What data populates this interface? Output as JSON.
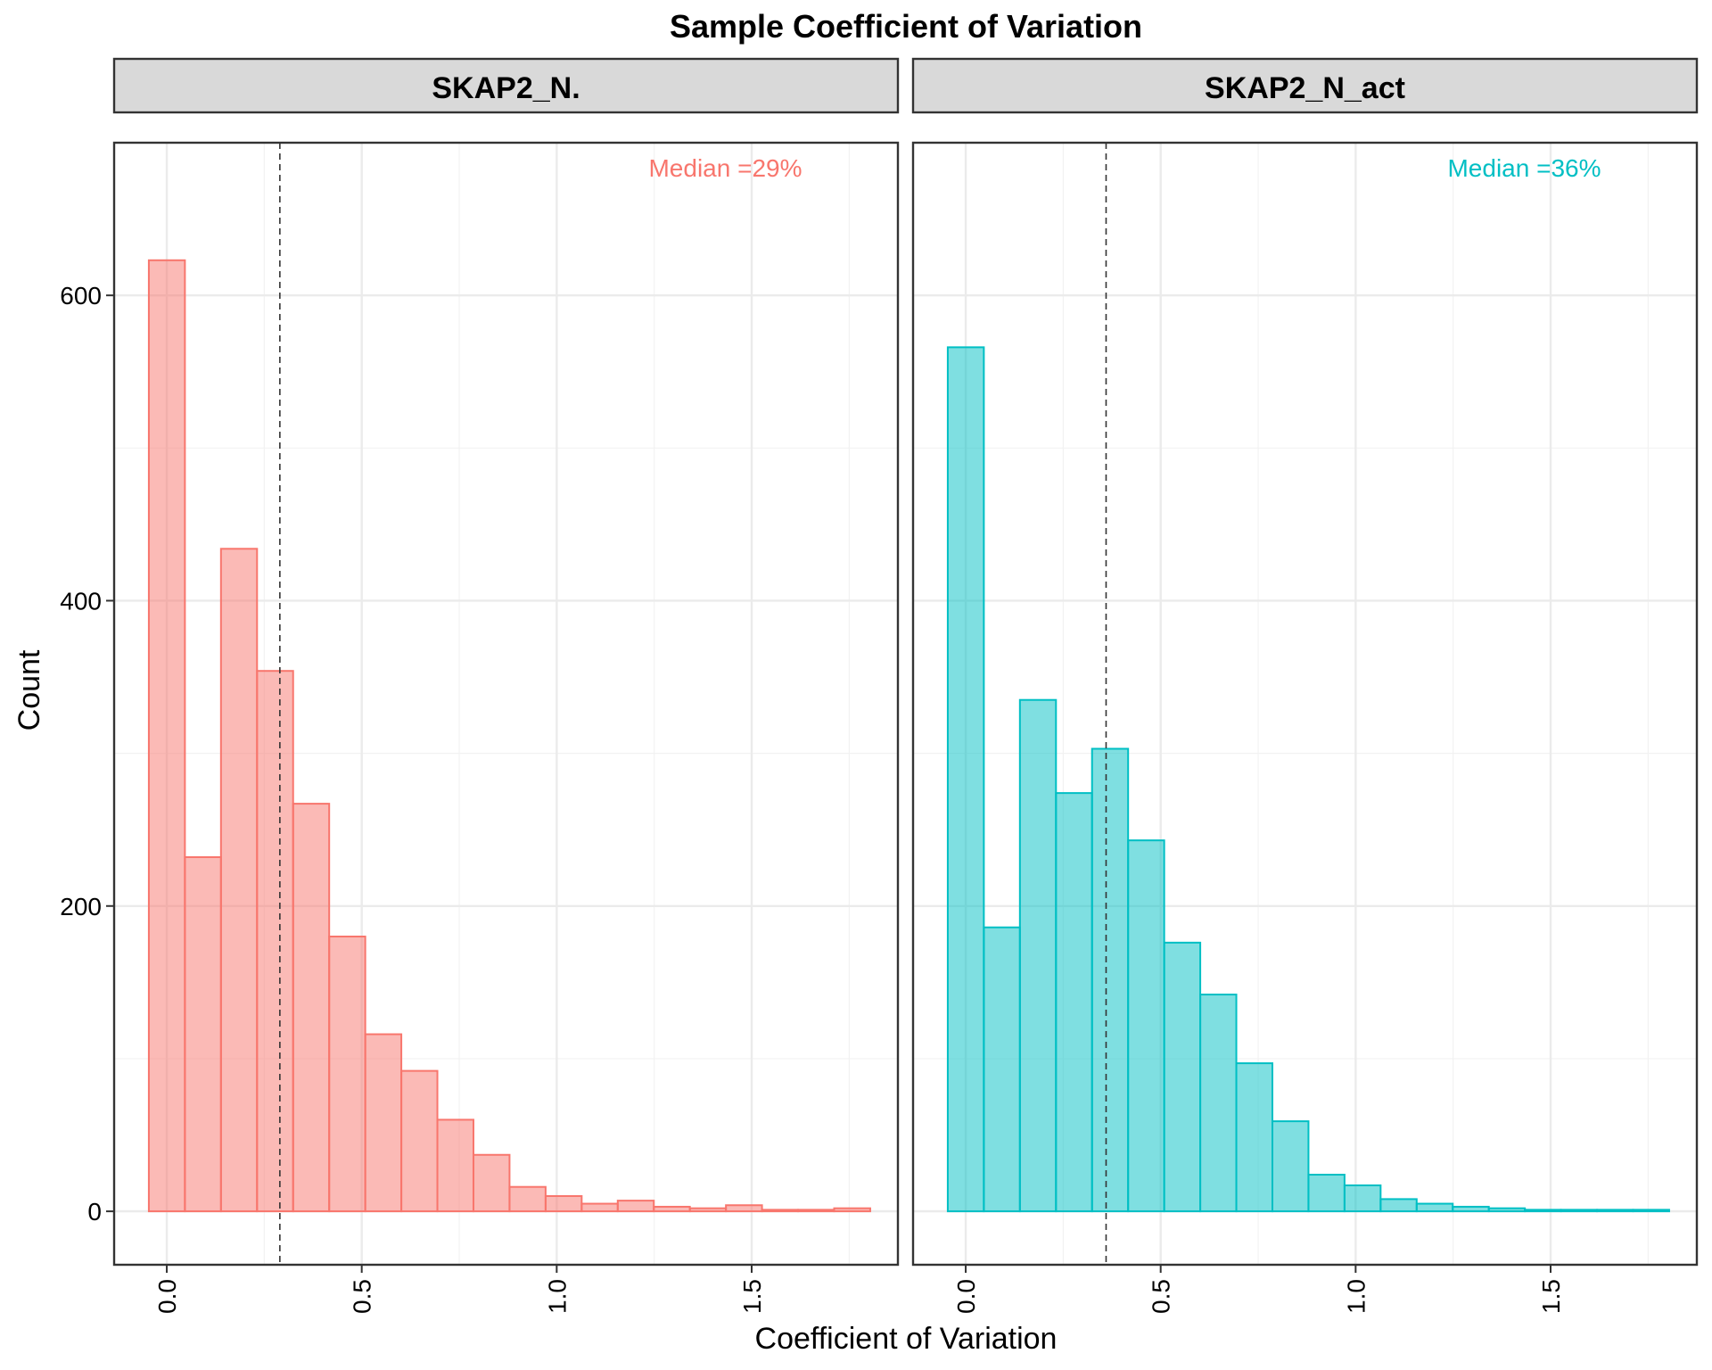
{
  "chart_data": {
    "type": "bar",
    "title": "Sample Coefficient of Variation",
    "xlabel": "Coefficient of Variation",
    "ylabel": "Count",
    "xlim": [
      -0.135,
      1.875
    ],
    "ylim": [
      -35,
      700
    ],
    "xticks": [
      0.0,
      0.5,
      1.0,
      1.5
    ],
    "xtick_labels": [
      "0.0",
      "0.5",
      "1.0",
      "1.5"
    ],
    "yticks": [
      0,
      200,
      400,
      600
    ],
    "ytick_labels": [
      "0",
      "200",
      "400",
      "600"
    ],
    "grid": true,
    "bin_width": 0.0925,
    "bin_start": -0.046,
    "reference_line": "dashed vertical line at the median",
    "panels": [
      {
        "name": "SKAP2_N.",
        "color": "#F8766D",
        "median": 0.29,
        "median_label": "Median =29%",
        "values": [
          623,
          232,
          434,
          354,
          267,
          180,
          116,
          92,
          60,
          37,
          16,
          10,
          5,
          7,
          3,
          2,
          4,
          1,
          1,
          2
        ]
      },
      {
        "name": "SKAP2_N_act",
        "color": "#00BFC4",
        "median": 0.36,
        "median_label": "Median =36%",
        "values": [
          566,
          186,
          335,
          274,
          303,
          243,
          176,
          142,
          97,
          59,
          24,
          17,
          8,
          5,
          3,
          2,
          1,
          1,
          1,
          1
        ]
      }
    ]
  }
}
